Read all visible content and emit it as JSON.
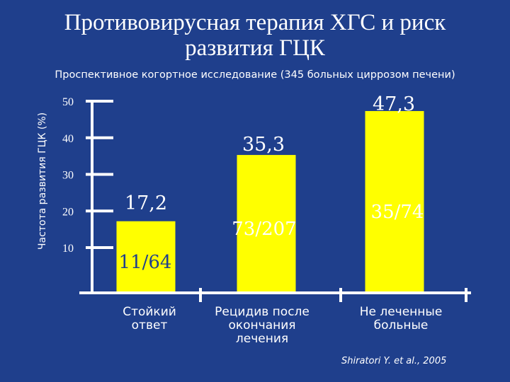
{
  "slide": {
    "title_line1": "Противовирусная терапия ХГС и риск",
    "title_line2": "развития ГЦК",
    "subtitle": "Проспективное когортное исследование (345 больных циррозом печени)",
    "citation": "Shiratori Y. et al., 2005"
  },
  "chart_data": {
    "type": "bar",
    "title": "",
    "ylabel": "Частота развития ГЦК (%)",
    "xlabel": "",
    "ylim": [
      0,
      50
    ],
    "yticks": [
      10,
      20,
      30,
      40,
      50
    ],
    "categories": [
      [
        "Стойкий",
        "ответ"
      ],
      [
        "Рецидив после",
        "окончания",
        "лечения"
      ],
      [
        "Не леченные",
        "больные"
      ]
    ],
    "values": [
      17.2,
      35.3,
      47.3
    ],
    "value_labels": [
      "17,2",
      "35,3",
      "47,3"
    ],
    "ratio_labels": [
      "11/64",
      "73/207",
      "35/74"
    ],
    "bar_color": "#ffff00",
    "background_color": "#1f3f8c",
    "axis_color": "#ffffff"
  }
}
